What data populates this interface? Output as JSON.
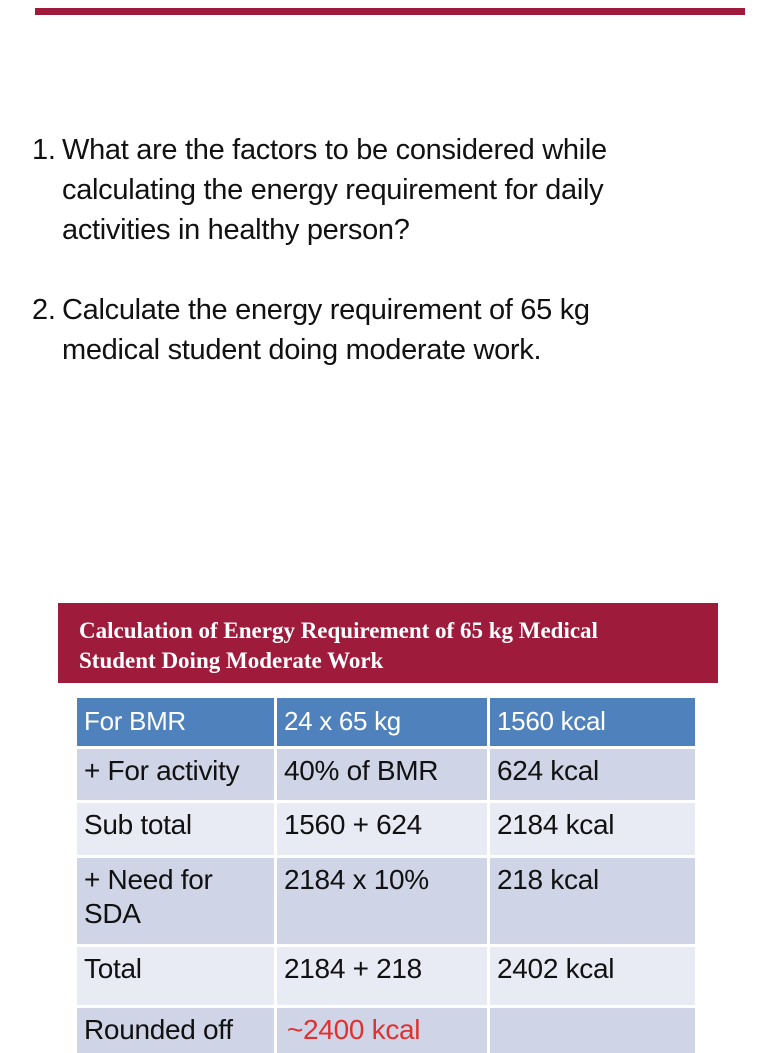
{
  "page": {
    "background": "#ffffff",
    "top_bar_color": "#9e1b3c"
  },
  "questions": [
    {
      "number": "1.",
      "lines": [
        "What are the factors to be considered while",
        "calculating the energy requirement for daily",
        "activities in healthy person?"
      ]
    },
    {
      "number": "2.",
      "lines": [
        "Calculate the energy requirement of 65 kg",
        "medical student doing moderate work."
      ]
    }
  ],
  "table_section": {
    "title_lines": [
      "Calculation of Energy Requirement of 65 kg Medical",
      "Student Doing Moderate Work"
    ],
    "title_bg": "#9e1b3c",
    "title_text_color": "#ffffff",
    "header_bg": "#4f81bd",
    "band_dark": "#cfd5e6",
    "band_light": "#e9ebf4",
    "highlight_color": "#e03131",
    "table": {
      "header_row": {
        "cells": [
          "For BMR",
          "24 x 65 kg",
          "1560 kcal"
        ]
      },
      "body_rows": [
        {
          "cells": [
            "+ For activity",
            "40% of BMR",
            "624 kcal"
          ]
        },
        {
          "cells": [
            "Sub total",
            "1560 + 624",
            "2184 kcal"
          ]
        },
        {
          "cells": [
            "+ Need for SDA",
            "2184 x 10%",
            "218 kcal"
          ]
        },
        {
          "cells": [
            "Total",
            "2184 + 218",
            "2402 kcal"
          ]
        },
        {
          "cells": [
            "Rounded off",
            "~2400 kcal",
            ""
          ]
        }
      ]
    }
  }
}
